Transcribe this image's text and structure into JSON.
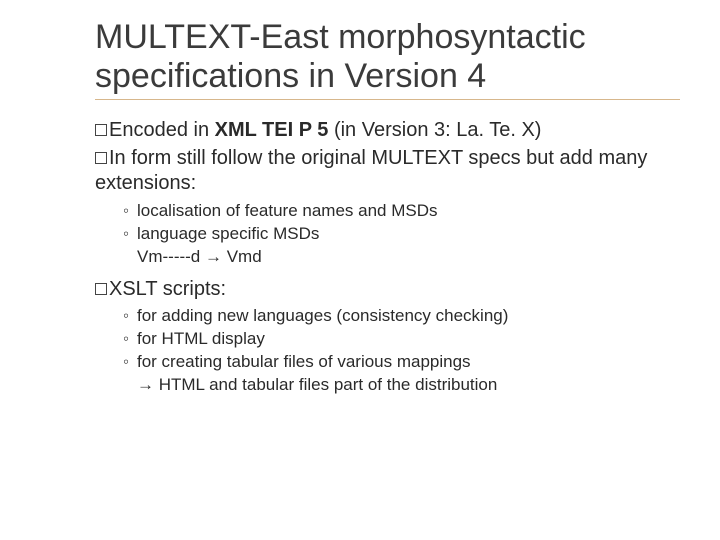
{
  "title": "MULTEXT-East morphosyntactic specifications in Version 4",
  "colors": {
    "background": "#ffffff",
    "title_text": "#3b3b3b",
    "body_text": "#2a2a2a",
    "title_underline": "#d7b78c",
    "bullet_border": "#444444"
  },
  "typography": {
    "title_fontsize": 34,
    "bullet_fontsize": 20,
    "sub_fontsize": 17,
    "font_family": "Arial"
  },
  "bullets": [
    {
      "prefix": "Encoded in ",
      "bold": "XML TEI P 5",
      "suffix": " (in Version 3: La. Te. X)",
      "subs": []
    },
    {
      "prefix": "In form still follow the original MULTEXT specs but add many extensions:",
      "bold": "",
      "suffix": "",
      "subs": [
        {
          "text": "localisation of feature names and MSDs"
        },
        {
          "text": "language specific MSDs",
          "cont": "Vm-----d → Vmd"
        }
      ]
    },
    {
      "prefix": "XSLT scripts:",
      "bold": "",
      "suffix": "",
      "subs": [
        {
          "text": "for adding new languages (consistency checking)"
        },
        {
          "text": "for HTML display"
        },
        {
          "text": "for creating tabular files of various mappings",
          "cont": "→ HTML and tabular files part of the distribution"
        }
      ]
    }
  ]
}
